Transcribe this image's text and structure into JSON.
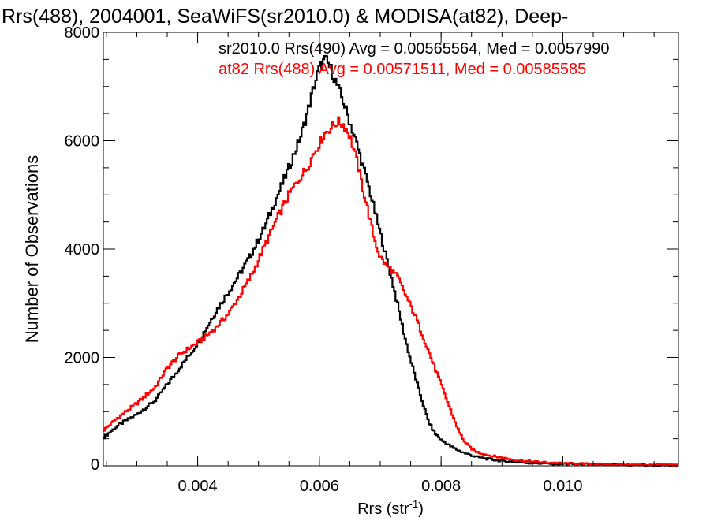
{
  "chart_data": {
    "type": "line",
    "title": "Rrs(488), 2004001, SeaWiFS(sr2010.0) & MODISA(at82), Deep-",
    "xlabel": "Rrs (str",
    "xlabel_sup": "-1",
    "xlabel_tail": ")",
    "ylabel": "Number of Observations",
    "xlim": [
      0.00245,
      0.0119
    ],
    "ylim": [
      0,
      8000
    ],
    "xticks": [
      0.004,
      0.006,
      0.008,
      0.01
    ],
    "xtick_labels": [
      "0.004",
      "0.006",
      "0.008",
      "0.010"
    ],
    "yticks": [
      0,
      2000,
      4000,
      6000,
      8000
    ],
    "ytick_labels": [
      "0",
      "2000",
      "4000",
      "6000",
      "8000"
    ],
    "x_minor_step": 0.0005,
    "y_minor_step": 500,
    "step_style": "histogram",
    "grid": false,
    "legend_position": "top-right",
    "series": [
      {
        "name": "sr2010.0 Rrs(490) Avg = 0.00565564, Med = 0.0057990",
        "color": "#000000",
        "x": [
          0.00245,
          0.0027,
          0.003,
          0.0033,
          0.0035,
          0.0037,
          0.0039,
          0.0041,
          0.0043,
          0.0045,
          0.0047,
          0.0049,
          0.0051,
          0.0053,
          0.0055,
          0.0057,
          0.0058,
          0.0059,
          0.006,
          0.0061,
          0.0062,
          0.0063,
          0.0064,
          0.0065,
          0.0066,
          0.0067,
          0.0068,
          0.0069,
          0.007,
          0.0071,
          0.0072,
          0.0073,
          0.0074,
          0.0075,
          0.0076,
          0.0077,
          0.0078,
          0.0079,
          0.008,
          0.0082,
          0.0084,
          0.0086,
          0.0088,
          0.009,
          0.0092,
          0.0095,
          0.01,
          0.0105,
          0.011,
          0.0115,
          0.0119
        ],
        "y": [
          520,
          750,
          950,
          1200,
          1500,
          1800,
          2100,
          2450,
          2850,
          3200,
          3550,
          3950,
          4400,
          4950,
          5500,
          6100,
          6500,
          6950,
          7350,
          7500,
          7300,
          7000,
          6700,
          6350,
          6000,
          5600,
          5200,
          4750,
          4300,
          3850,
          3400,
          2900,
          2400,
          1950,
          1550,
          1150,
          800,
          600,
          480,
          330,
          230,
          160,
          120,
          90,
          70,
          50,
          35,
          25,
          15,
          10,
          8
        ]
      },
      {
        "name": "at82 Rrs(488) Avg = 0.00571511, Med = 0.00585585",
        "color": "#ff0000",
        "x": [
          0.00245,
          0.0027,
          0.003,
          0.0033,
          0.0035,
          0.0037,
          0.0039,
          0.0041,
          0.0043,
          0.0045,
          0.0047,
          0.0049,
          0.0051,
          0.0053,
          0.0055,
          0.0057,
          0.0058,
          0.0059,
          0.006,
          0.0061,
          0.0062,
          0.0063,
          0.0064,
          0.0065,
          0.0066,
          0.0067,
          0.0068,
          0.0069,
          0.007,
          0.0071,
          0.0072,
          0.0073,
          0.0074,
          0.0075,
          0.0076,
          0.0077,
          0.0078,
          0.0079,
          0.008,
          0.0081,
          0.0082,
          0.0083,
          0.0084,
          0.0085,
          0.0086,
          0.0088,
          0.009,
          0.0092,
          0.0095,
          0.01,
          0.0105,
          0.011,
          0.0115,
          0.0119
        ],
        "y": [
          650,
          900,
          1150,
          1450,
          1800,
          2050,
          2200,
          2350,
          2550,
          2800,
          3150,
          3550,
          4050,
          4550,
          5000,
          5350,
          5500,
          5750,
          5950,
          6150,
          6250,
          6350,
          6300,
          6100,
          5700,
          5200,
          4700,
          4200,
          3850,
          3700,
          3600,
          3450,
          3200,
          2950,
          2700,
          2400,
          2100,
          1800,
          1500,
          1200,
          900,
          620,
          420,
          320,
          250,
          190,
          150,
          110,
          75,
          45,
          30,
          20,
          12,
          8
        ]
      }
    ]
  }
}
